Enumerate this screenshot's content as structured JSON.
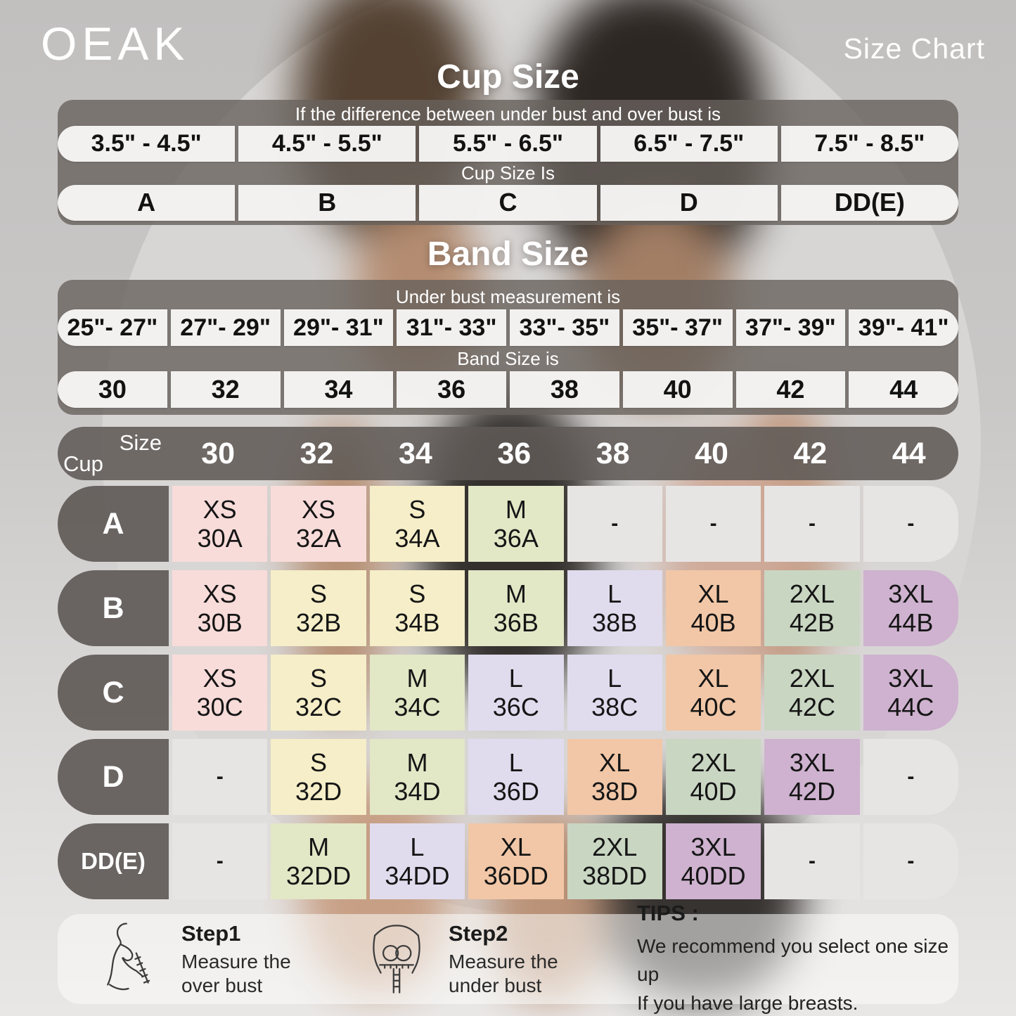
{
  "brand": "OEAK",
  "page_title": "Size Chart",
  "cup_section": {
    "title": "Cup Size",
    "condition_label": "If the  difference between under bust and over bust is",
    "ranges": [
      "3.5\" - 4.5\"",
      "4.5\" - 5.5\"",
      "5.5\" - 6.5\"",
      "6.5\" - 7.5\"",
      "7.5\" - 8.5\""
    ],
    "result_label": "Cup Size Is",
    "cups": [
      "A",
      "B",
      "C",
      "D",
      "DD(E)"
    ]
  },
  "band_section": {
    "title": "Band Size",
    "condition_label": "Under bust measurement is",
    "ranges": [
      "25\"- 27\"",
      "27\"- 29\"",
      "29\"- 31\"",
      "31\"- 33\"",
      "33\"- 35\"",
      "35\"- 37\"",
      "37\"- 39\"",
      "39\"- 41\""
    ],
    "result_label": "Band Size is",
    "bands": [
      "30",
      "32",
      "34",
      "36",
      "38",
      "40",
      "42",
      "44"
    ]
  },
  "matrix": {
    "corner_top": "Size",
    "corner_bottom": "Cup",
    "columns": [
      "30",
      "32",
      "34",
      "36",
      "38",
      "40",
      "42",
      "44"
    ],
    "rows": [
      {
        "cup": "A",
        "cells": [
          {
            "label": "XS",
            "code": "30A",
            "color": "pink"
          },
          {
            "label": "XS",
            "code": "32A",
            "color": "pink"
          },
          {
            "label": "S",
            "code": "34A",
            "color": "yellow"
          },
          {
            "label": "M",
            "code": "36A",
            "color": "green"
          },
          {
            "label": "-",
            "code": "",
            "color": "empty"
          },
          {
            "label": "-",
            "code": "",
            "color": "empty"
          },
          {
            "label": "-",
            "code": "",
            "color": "empty"
          },
          {
            "label": "-",
            "code": "",
            "color": "empty"
          }
        ]
      },
      {
        "cup": "B",
        "cells": [
          {
            "label": "XS",
            "code": "30B",
            "color": "pink"
          },
          {
            "label": "S",
            "code": "32B",
            "color": "yellow"
          },
          {
            "label": "S",
            "code": "34B",
            "color": "yellow"
          },
          {
            "label": "M",
            "code": "36B",
            "color": "green"
          },
          {
            "label": "L",
            "code": "38B",
            "color": "lavender"
          },
          {
            "label": "XL",
            "code": "40B",
            "color": "peach"
          },
          {
            "label": "2XL",
            "code": "42B",
            "color": "sage"
          },
          {
            "label": "3XL",
            "code": "44B",
            "color": "mauve"
          }
        ]
      },
      {
        "cup": "C",
        "cells": [
          {
            "label": "XS",
            "code": "30C",
            "color": "pink"
          },
          {
            "label": "S",
            "code": "32C",
            "color": "yellow"
          },
          {
            "label": "M",
            "code": "34C",
            "color": "green"
          },
          {
            "label": "L",
            "code": "36C",
            "color": "lavender"
          },
          {
            "label": "L",
            "code": "38C",
            "color": "lavender"
          },
          {
            "label": "XL",
            "code": "40C",
            "color": "peach"
          },
          {
            "label": "2XL",
            "code": "42C",
            "color": "sage"
          },
          {
            "label": "3XL",
            "code": "44C",
            "color": "mauve"
          }
        ]
      },
      {
        "cup": "D",
        "cells": [
          {
            "label": "-",
            "code": "",
            "color": "empty"
          },
          {
            "label": "S",
            "code": "32D",
            "color": "yellow"
          },
          {
            "label": "M",
            "code": "34D",
            "color": "green"
          },
          {
            "label": "L",
            "code": "36D",
            "color": "lavender"
          },
          {
            "label": "XL",
            "code": "38D",
            "color": "peach"
          },
          {
            "label": "2XL",
            "code": "40D",
            "color": "sage"
          },
          {
            "label": "3XL",
            "code": "42D",
            "color": "mauve"
          },
          {
            "label": "-",
            "code": "",
            "color": "empty"
          }
        ]
      },
      {
        "cup": "DD(E)",
        "cells": [
          {
            "label": "-",
            "code": "",
            "color": "empty"
          },
          {
            "label": "M",
            "code": "32DD",
            "color": "green"
          },
          {
            "label": "L",
            "code": "34DD",
            "color": "lavender"
          },
          {
            "label": "XL",
            "code": "36DD",
            "color": "peach"
          },
          {
            "label": "2XL",
            "code": "38DD",
            "color": "sage"
          },
          {
            "label": "3XL",
            "code": "40DD",
            "color": "mauve"
          },
          {
            "label": "-",
            "code": "",
            "color": "empty"
          },
          {
            "label": "-",
            "code": "",
            "color": "empty"
          }
        ]
      }
    ]
  },
  "palette": {
    "pink": "#f8dcda",
    "yellow": "#f5eec8",
    "green": "#e2e7c6",
    "lavender": "#e0dcee",
    "peach": "#f1c7a7",
    "sage": "#c9d6c2",
    "mauve": "#ceb2cf",
    "empty": "#e7e5e4"
  },
  "footer": {
    "step1": {
      "title": "Step1",
      "line1": "Measure the",
      "line2": "over bust"
    },
    "step2": {
      "title": "Step2",
      "line1": "Measure the",
      "line2": "under bust"
    },
    "tips": {
      "title": "TIPS :",
      "line1": "We recommend you select one size up",
      "line2": "If you have large breasts."
    }
  },
  "chart_data": [
    {
      "type": "table",
      "title": "Cup Size",
      "note": "If the  difference between under bust and over bust is",
      "columns": [
        "3.5\" - 4.5\"",
        "4.5\" - 5.5\"",
        "5.5\" - 6.5\"",
        "6.5\" - 7.5\"",
        "7.5\" - 8.5\""
      ],
      "result_label": "Cup Size Is",
      "values": [
        "A",
        "B",
        "C",
        "D",
        "DD(E)"
      ]
    },
    {
      "type": "table",
      "title": "Band Size",
      "note": "Under bust measurement is",
      "columns": [
        "25\"- 27\"",
        "27\"- 29\"",
        "29\"- 31\"",
        "31\"- 33\"",
        "33\"- 35\"",
        "35\"- 37\"",
        "37\"- 39\"",
        "39\"- 41\""
      ],
      "result_label": "Band Size is",
      "values": [
        "30",
        "32",
        "34",
        "36",
        "38",
        "40",
        "42",
        "44"
      ]
    },
    {
      "type": "table",
      "title": "Size matrix (Cup x Band)",
      "columns": [
        "30",
        "32",
        "34",
        "36",
        "38",
        "40",
        "42",
        "44"
      ],
      "rows": [
        {
          "cup": "A",
          "sizes": [
            "XS 30A",
            "XS 32A",
            "S 34A",
            "M 36A",
            "-",
            "-",
            "-",
            "-"
          ]
        },
        {
          "cup": "B",
          "sizes": [
            "XS 30B",
            "S 32B",
            "S 34B",
            "M 36B",
            "L 38B",
            "XL 40B",
            "2XL 42B",
            "3XL 44B"
          ]
        },
        {
          "cup": "C",
          "sizes": [
            "XS 30C",
            "S 32C",
            "M 34C",
            "L 36C",
            "L 38C",
            "XL 40C",
            "2XL 42C",
            "3XL 44C"
          ]
        },
        {
          "cup": "D",
          "sizes": [
            "-",
            "S 32D",
            "M 34D",
            "L 36D",
            "XL 38D",
            "2XL 40D",
            "3XL 42D",
            "-"
          ]
        },
        {
          "cup": "DD(E)",
          "sizes": [
            "-",
            "M 32DD",
            "L 34DD",
            "XL 36DD",
            "2XL 38DD",
            "3XL 40DD",
            "-",
            "-"
          ]
        }
      ]
    }
  ]
}
